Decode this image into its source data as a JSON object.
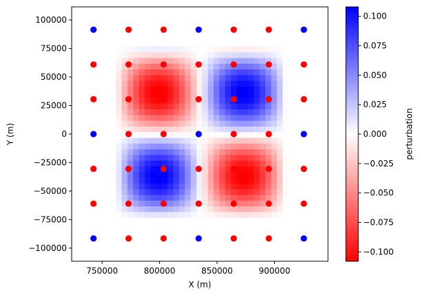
{
  "chart_data": {
    "type": "heatmap",
    "xlabel": "X (m)",
    "ylabel": "Y (m)",
    "xlim": [
      723500,
      946500
    ],
    "ylim": [
      -111500,
      111500
    ],
    "xticks": [
      {
        "value": 750000,
        "label": "750000"
      },
      {
        "value": 800000,
        "label": "800000"
      },
      {
        "value": 850000,
        "label": "850000"
      },
      {
        "value": 900000,
        "label": "900000"
      }
    ],
    "yticks": [
      {
        "value": 100000,
        "label": "100000"
      },
      {
        "value": 75000,
        "label": "75000"
      },
      {
        "value": 50000,
        "label": "50000"
      },
      {
        "value": 25000,
        "label": "25000"
      },
      {
        "value": 0,
        "label": "0"
      },
      {
        "value": -25000,
        "label": "−25000"
      },
      {
        "value": -50000,
        "label": "−50000"
      },
      {
        "value": -75000,
        "label": "−75000"
      },
      {
        "value": -100000,
        "label": "−100000"
      }
    ],
    "grid": false,
    "heatmap": {
      "x_range": [
        762000,
        910000
      ],
      "y_range": [
        -73000,
        73000
      ],
      "cells_per_axis": 30,
      "cell_size": 5000,
      "amplitude": 0.11,
      "pattern": "sin(2πx')·sin(2πy') checkerboard: top-left negative, top-right positive, bottom-left positive, bottom-right negative"
    },
    "colorbar": {
      "label": "perturbation",
      "range": [
        -0.108,
        0.108
      ],
      "colors": {
        "low": "#ff0000",
        "mid": "#ffffff",
        "high": "#0000ff"
      },
      "ticks": [
        {
          "value": 0.1,
          "label": "0.100"
        },
        {
          "value": 0.075,
          "label": "0.075"
        },
        {
          "value": 0.05,
          "label": "0.050"
        },
        {
          "value": 0.025,
          "label": "0.025"
        },
        {
          "value": 0.0,
          "label": "0.000"
        },
        {
          "value": -0.025,
          "label": "−0.025"
        },
        {
          "value": -0.05,
          "label": "−0.050"
        },
        {
          "value": -0.075,
          "label": "−0.075"
        },
        {
          "value": -0.1,
          "label": "−0.100"
        }
      ]
    },
    "points": {
      "x": [
        742500,
        773000,
        803500,
        834000,
        864500,
        895000,
        925500
      ],
      "y": [
        91500,
        61000,
        30500,
        0,
        -30500,
        -61000,
        -91500
      ],
      "series": [
        {
          "name": "blue",
          "color": "#0000ff",
          "coords": [
            [
              742500,
              91500
            ],
            [
              834000,
              91500
            ],
            [
              925500,
              91500
            ],
            [
              742500,
              0
            ],
            [
              834000,
              0
            ],
            [
              925500,
              0
            ],
            [
              742500,
              -91500
            ],
            [
              834000,
              -91500
            ],
            [
              925500,
              -91500
            ]
          ]
        },
        {
          "name": "red",
          "color": "#ff0000",
          "coords": [
            [
              773000,
              91500
            ],
            [
              803500,
              91500
            ],
            [
              864500,
              91500
            ],
            [
              895000,
              91500
            ],
            [
              742500,
              61000
            ],
            [
              773000,
              61000
            ],
            [
              803500,
              61000
            ],
            [
              834000,
              61000
            ],
            [
              864500,
              61000
            ],
            [
              895000,
              61000
            ],
            [
              925500,
              61000
            ],
            [
              742500,
              30500
            ],
            [
              773000,
              30500
            ],
            [
              803500,
              30500
            ],
            [
              834000,
              30500
            ],
            [
              864500,
              30500
            ],
            [
              895000,
              30500
            ],
            [
              925500,
              30500
            ],
            [
              773000,
              0
            ],
            [
              803500,
              0
            ],
            [
              864500,
              0
            ],
            [
              895000,
              0
            ],
            [
              742500,
              -30500
            ],
            [
              773000,
              -30500
            ],
            [
              803500,
              -30500
            ],
            [
              834000,
              -30500
            ],
            [
              864500,
              -30500
            ],
            [
              895000,
              -30500
            ],
            [
              925500,
              -30500
            ],
            [
              742500,
              -61000
            ],
            [
              773000,
              -61000
            ],
            [
              803500,
              -61000
            ],
            [
              834000,
              -61000
            ],
            [
              864500,
              -61000
            ],
            [
              895000,
              -61000
            ],
            [
              925500,
              -61000
            ],
            [
              773000,
              -91500
            ],
            [
              803500,
              -91500
            ],
            [
              864500,
              -91500
            ],
            [
              895000,
              -91500
            ]
          ]
        }
      ]
    }
  }
}
